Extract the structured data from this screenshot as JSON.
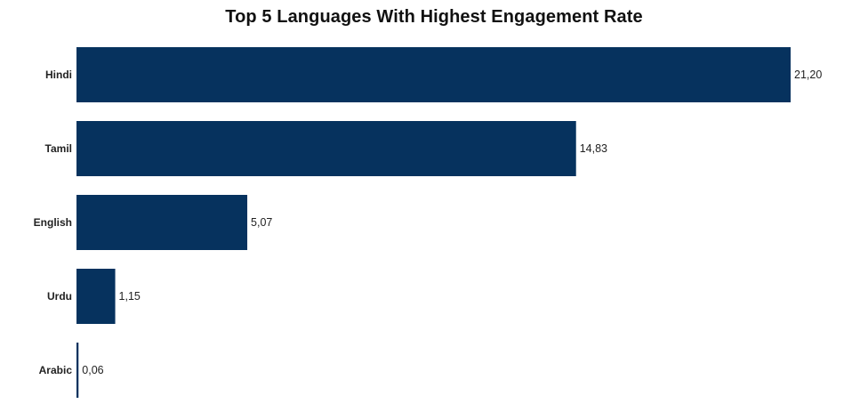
{
  "chart_data": {
    "type": "bar",
    "orientation": "horizontal",
    "title": "Top 5 Languages With Highest Engagement Rate",
    "categories": [
      "Hindi",
      "Tamil",
      "English",
      "Urdu",
      "Arabic"
    ],
    "values": [
      21.2,
      14.83,
      5.07,
      1.15,
      0.06
    ],
    "value_labels": [
      "21,20",
      "14,83",
      "5,07",
      "1,15",
      "0,06"
    ],
    "xlabel": "",
    "ylabel": "",
    "xlim": [
      0,
      21.2
    ],
    "grid": false,
    "legend": "none",
    "bar_color": "#06325E"
  }
}
